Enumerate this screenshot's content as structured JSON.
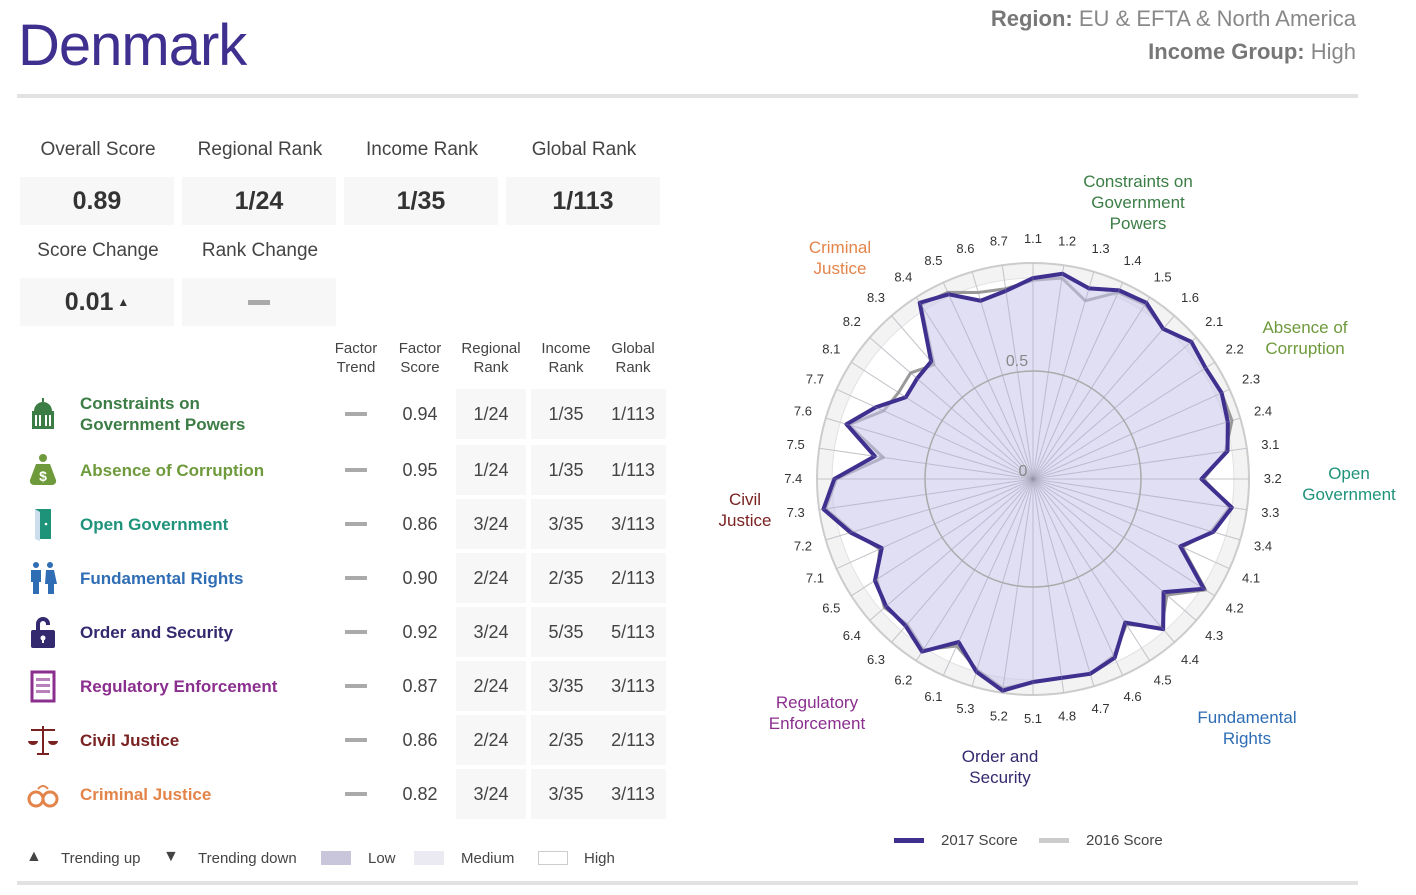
{
  "header": {
    "country": "Denmark",
    "region_label": "Region:",
    "region": "EU & EFTA & North America",
    "income_label": "Income Group:",
    "income": "High"
  },
  "kpis": [
    {
      "label": "Overall Score",
      "value": "0.89"
    },
    {
      "label": "Regional Rank",
      "value": "1/24"
    },
    {
      "label": "Income Rank",
      "value": "1/35"
    },
    {
      "label": "Global Rank",
      "value": "1/113"
    }
  ],
  "changes": {
    "score_label": "Score Change",
    "score_value": "0.01",
    "score_trend": "up",
    "rank_label": "Rank Change",
    "rank_value": "none"
  },
  "table": {
    "headers": [
      "Factor\nTrend",
      "Factor\nScore",
      "Regional\nRank",
      "Income\nRank",
      "Global\nRank"
    ],
    "rows": [
      {
        "name": "Constraints on Government Powers",
        "icon": "capitol-icon",
        "color": "#3b7d45",
        "trend": "none",
        "score": "0.94",
        "regional": "1/24",
        "income": "1/35",
        "global": "1/113"
      },
      {
        "name": "Absence of Corruption",
        "icon": "money-bag-icon",
        "color": "#6e9a3c",
        "trend": "none",
        "score": "0.95",
        "regional": "1/24",
        "income": "1/35",
        "global": "1/113"
      },
      {
        "name": "Open Government",
        "icon": "door-icon",
        "color": "#1f937a",
        "trend": "none",
        "score": "0.86",
        "regional": "3/24",
        "income": "3/35",
        "global": "3/113"
      },
      {
        "name": "Fundamental Rights",
        "icon": "people-icon",
        "color": "#2f6db5",
        "trend": "none",
        "score": "0.90",
        "regional": "2/24",
        "income": "2/35",
        "global": "2/113"
      },
      {
        "name": "Order and Security",
        "icon": "padlock-icon",
        "color": "#33296e",
        "trend": "none",
        "score": "0.92",
        "regional": "3/24",
        "income": "5/35",
        "global": "5/113"
      },
      {
        "name": "Regulatory Enforcement",
        "icon": "clipboard-icon",
        "color": "#8b2f8f",
        "trend": "none",
        "score": "0.87",
        "regional": "2/24",
        "income": "3/35",
        "global": "3/113"
      },
      {
        "name": "Civil Justice",
        "icon": "scales-icon",
        "color": "#7a2222",
        "trend": "none",
        "score": "0.86",
        "regional": "2/24",
        "income": "2/35",
        "global": "2/113"
      },
      {
        "name": "Criminal Justice",
        "icon": "handcuffs-icon",
        "color": "#e3844a",
        "trend": "none",
        "score": "0.82",
        "regional": "3/24",
        "income": "3/35",
        "global": "3/113"
      }
    ]
  },
  "legend": {
    "up": "Trending up",
    "down": "Trending down",
    "low": "Low",
    "medium": "Medium",
    "high": "High"
  },
  "chart_data": {
    "type": "radar",
    "range": [
      0,
      1
    ],
    "ring_labels": [
      "0",
      "0.5"
    ],
    "axes": [
      "1.1",
      "1.2",
      "1.3",
      "1.4",
      "1.5",
      "1.6",
      "2.1",
      "2.2",
      "2.3",
      "2.4",
      "3.1",
      "3.2",
      "3.3",
      "3.4",
      "4.1",
      "4.2",
      "4.3",
      "4.4",
      "4.5",
      "4.6",
      "4.7",
      "4.8",
      "5.1",
      "5.2",
      "5.3",
      "6.1",
      "6.2",
      "6.3",
      "6.4",
      "6.5",
      "7.1",
      "7.2",
      "7.3",
      "7.4",
      "7.5",
      "7.6",
      "7.7",
      "8.1",
      "8.2",
      "8.3",
      "8.4",
      "8.5",
      "8.6",
      "8.7"
    ],
    "factor_labels": [
      {
        "text": "Constraints on\nGovernment\nPowers",
        "color": "#3b7d45"
      },
      {
        "text": "Absence of\nCorruption",
        "color": "#6e9a3c"
      },
      {
        "text": "Open\nGovernment",
        "color": "#1f937a"
      },
      {
        "text": "Fundamental\nRights",
        "color": "#2f6db5"
      },
      {
        "text": "Order and\nSecurity",
        "color": "#33296e"
      },
      {
        "text": "Regulatory\nEnforcement",
        "color": "#8b2f8f"
      },
      {
        "text": "Civil\nJustice",
        "color": "#7a2222"
      },
      {
        "text": "Criminal\nJustice",
        "color": "#e3844a"
      }
    ],
    "series": [
      {
        "name": "2017 Score",
        "color": "#3f2f8f",
        "values": [
          0.93,
          0.96,
          0.92,
          0.96,
          0.97,
          0.92,
          0.97,
          0.95,
          0.96,
          0.94,
          0.91,
          0.78,
          0.93,
          0.87,
          0.75,
          0.94,
          0.8,
          0.92,
          0.79,
          0.91,
          0.94,
          0.93,
          0.94,
          0.99,
          0.93,
          0.83,
          0.95,
          0.9,
          0.9,
          0.87,
          0.77,
          0.88,
          0.98,
          0.92,
          0.74,
          0.9,
          0.8,
          0.7,
          0.71,
          0.72,
          0.97,
          0.94,
          0.86,
          0.88
        ]
      },
      {
        "name": "2016 Score",
        "color": "#999999",
        "values": [
          0.92,
          0.94,
          0.86,
          0.95,
          0.96,
          0.92,
          0.97,
          0.95,
          0.96,
          0.96,
          0.9,
          0.79,
          0.92,
          0.86,
          0.76,
          0.95,
          0.82,
          0.91,
          0.8,
          0.9,
          0.94,
          0.93,
          0.94,
          0.98,
          0.92,
          0.85,
          0.94,
          0.89,
          0.91,
          0.86,
          0.78,
          0.87,
          0.97,
          0.91,
          0.7,
          0.89,
          0.76,
          0.74,
          0.75,
          0.7,
          0.96,
          0.95,
          0.9,
          0.89
        ]
      }
    ]
  }
}
